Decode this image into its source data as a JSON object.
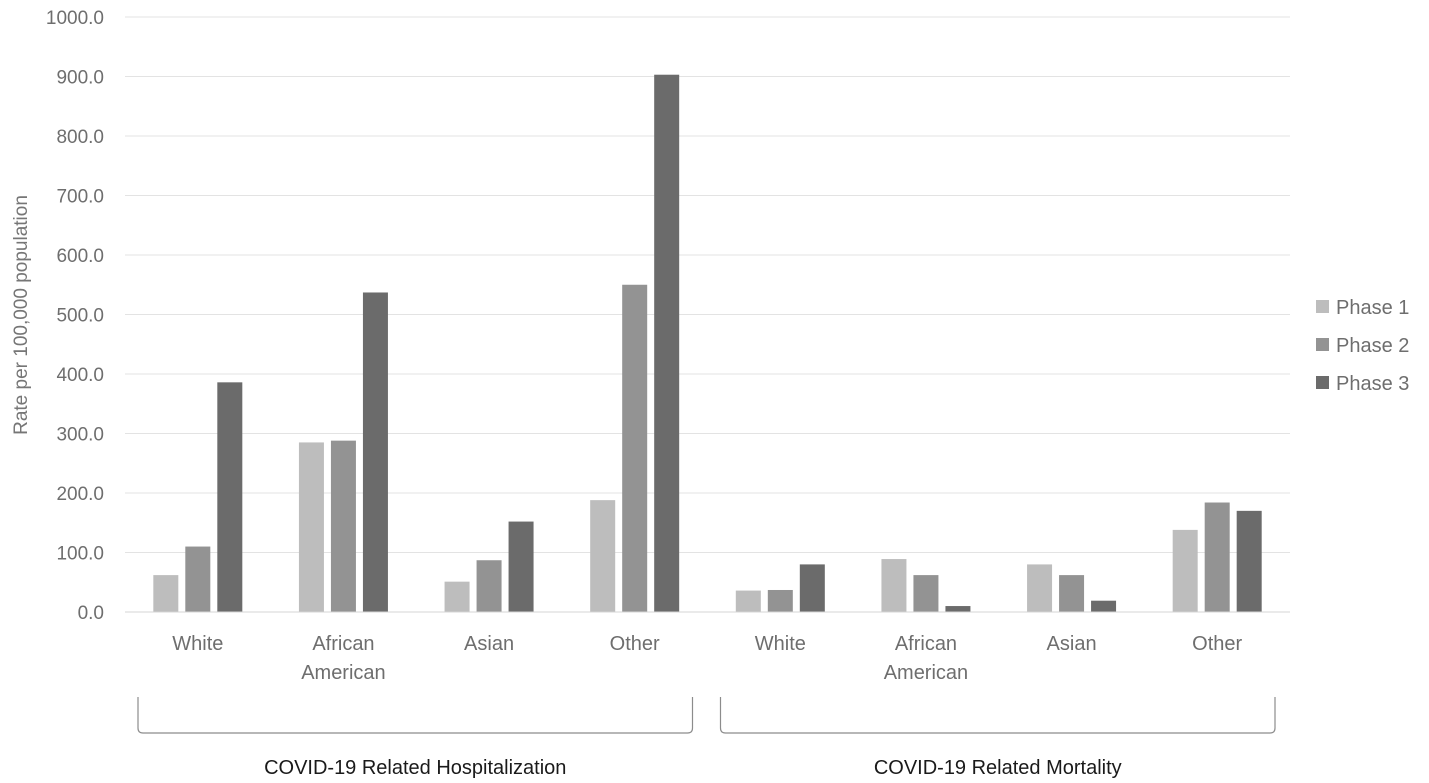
{
  "chart_data": {
    "type": "bar",
    "title": "",
    "ylabel": "Rate per 100,000 population",
    "xlabel": "",
    "ylim": [
      0,
      1000
    ],
    "yticks": [
      "0.0",
      "100.0",
      "200.0",
      "300.0",
      "400.0",
      "500.0",
      "600.0",
      "700.0",
      "800.0",
      "900.0",
      "1000.0"
    ],
    "grid": true,
    "legend_position": "right",
    "groups": [
      {
        "label": "COVID-19 Related Hospitalization",
        "categories": [
          [
            "White"
          ],
          [
            "African",
            "American"
          ],
          [
            "Asian"
          ],
          [
            "Other"
          ]
        ]
      },
      {
        "label": "COVID-19 Related Mortality",
        "categories": [
          [
            "White"
          ],
          [
            "African",
            "American"
          ],
          [
            "Asian"
          ],
          [
            "Other"
          ]
        ]
      }
    ],
    "series": [
      {
        "name": "Phase 1",
        "color": "#bdbdbd",
        "values": [
          62,
          285,
          51,
          188,
          36,
          89,
          80,
          138
        ]
      },
      {
        "name": "Phase 2",
        "color": "#939393",
        "values": [
          110,
          288,
          87,
          550,
          37,
          62,
          62,
          184
        ]
      },
      {
        "name": "Phase 3",
        "color": "#6b6b6b",
        "values": [
          386,
          537,
          152,
          903,
          80,
          10,
          19,
          170
        ]
      }
    ]
  }
}
